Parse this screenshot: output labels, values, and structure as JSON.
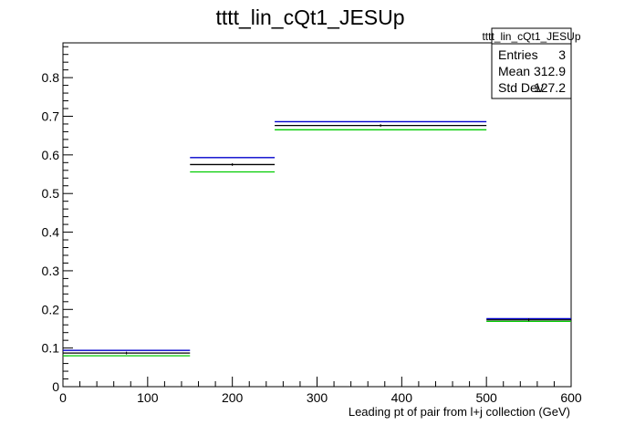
{
  "chart_data": {
    "type": "histogram",
    "title": "tttt_lin_cQt1_JESUp",
    "xlabel": "Leading pt of pair from l+j collection (GeV)",
    "ylabel": "",
    "xlim": [
      0,
      600
    ],
    "ylim": [
      0,
      0.89
    ],
    "x_ticks": [
      0,
      100,
      200,
      300,
      400,
      500,
      600
    ],
    "y_ticks": [
      0,
      0.1,
      0.2,
      0.3,
      0.4,
      0.5,
      0.6,
      0.7,
      0.8
    ],
    "y_tick_labels": [
      "0",
      "0.1",
      "0.2",
      "0.3",
      "0.4",
      "0.5",
      "0.6",
      "0.7",
      "0.8"
    ],
    "bin_edges": [
      0,
      150,
      250,
      500,
      600
    ],
    "series": [
      {
        "color": "#0000cc",
        "values": [
          0.094,
          0.593,
          0.686,
          0.176
        ]
      },
      {
        "color": "#000000",
        "values": [
          0.087,
          0.575,
          0.676,
          0.173
        ]
      },
      {
        "color": "#00cc00",
        "values": [
          0.08,
          0.556,
          0.665,
          0.169
        ]
      }
    ],
    "stats_box": {
      "title": "tttt_lin_cQt1_JESUp",
      "rows": [
        {
          "label": "Entries",
          "value": "3"
        },
        {
          "label": "Mean",
          "value": "312.9"
        },
        {
          "label": "Std Dev",
          "value": "127.2"
        }
      ]
    }
  }
}
